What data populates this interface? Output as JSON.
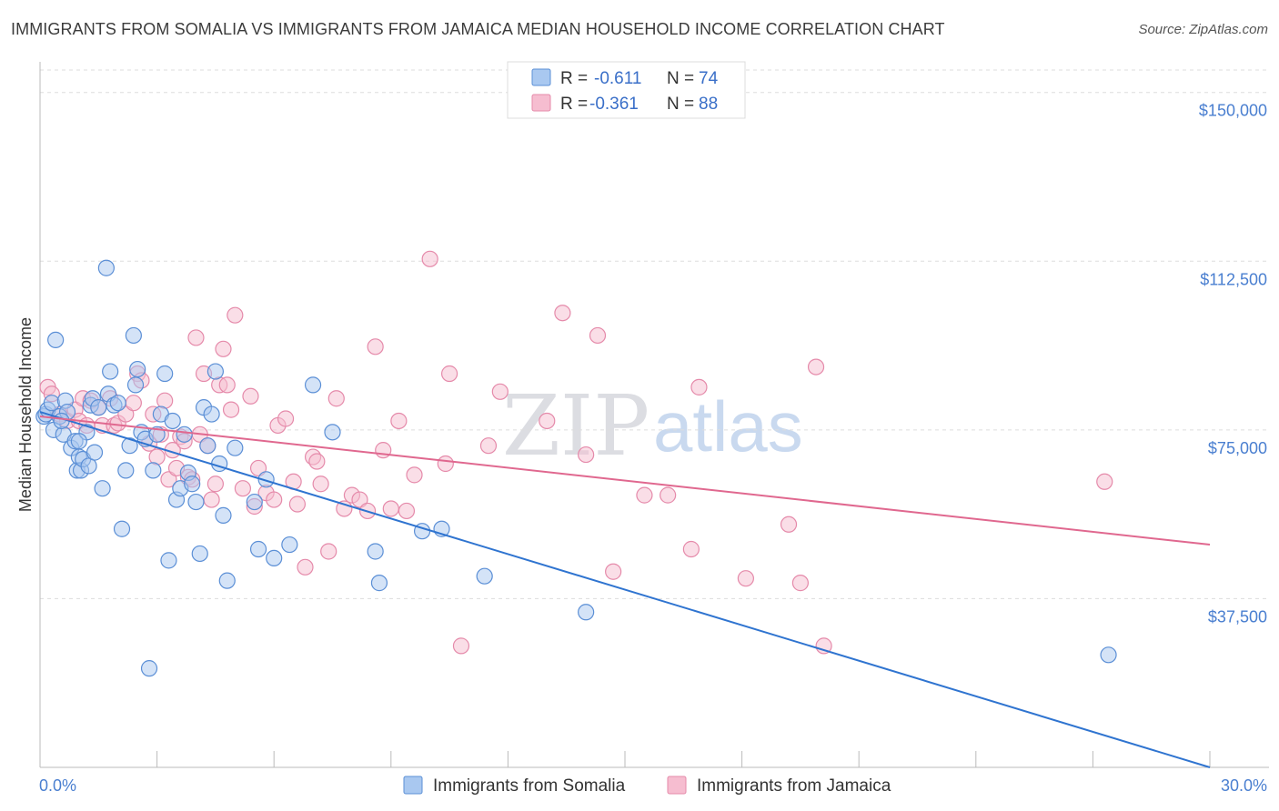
{
  "title": "IMMIGRANTS FROM SOMALIA VS IMMIGRANTS FROM JAMAICA MEDIAN HOUSEHOLD INCOME CORRELATION CHART",
  "source": "Source: ZipAtlas.com",
  "watermark": {
    "zip": "ZIP",
    "atlas": "atlas"
  },
  "colors": {
    "somalia_fill": "#a9c8f0",
    "somalia_stroke": "#5b8fd6",
    "somalia_line": "#2f74d0",
    "jamaica_fill": "#f6bdd0",
    "jamaica_stroke": "#e58aaa",
    "jamaica_line": "#e0688f",
    "tick_text": "#4a7fd0",
    "grid": "#dddddd"
  },
  "legend": {
    "rows": [
      {
        "r_label": "R =",
        "r_value": "-0.611",
        "n_label": "N =",
        "n_value": "74",
        "series": "somalia"
      },
      {
        "r_label": "R =",
        "r_value": "-0.361",
        "n_label": "N =",
        "n_value": "88",
        "series": "jamaica"
      }
    ]
  },
  "chart_data": {
    "type": "scatter",
    "title": "IMMIGRANTS FROM SOMALIA VS IMMIGRANTS FROM JAMAICA MEDIAN HOUSEHOLD INCOME CORRELATION CHART",
    "xlabel": "",
    "ylabel": "Median Household Income",
    "xlim": [
      0,
      30
    ],
    "ylim": [
      0,
      155000
    ],
    "x_tick_labels": {
      "left": "0.0%",
      "right": "30.0%"
    },
    "y_ticks": [
      {
        "value": 37500,
        "label": "$37,500"
      },
      {
        "value": 75000,
        "label": "$75,000"
      },
      {
        "value": 112500,
        "label": "$112,500"
      },
      {
        "value": 150000,
        "label": "$150,000"
      }
    ],
    "grid": true,
    "legend_position": "bottom",
    "series": [
      {
        "name": "Immigrants from Somalia",
        "color": "#5b8fd6",
        "trend": {
          "x": [
            0,
            30
          ],
          "y": [
            79000,
            0
          ]
        },
        "points": [
          [
            0.1,
            78000
          ],
          [
            0.15,
            78500
          ],
          [
            0.2,
            79500
          ],
          [
            0.3,
            81000
          ],
          [
            0.35,
            75000
          ],
          [
            0.4,
            95000
          ],
          [
            0.5,
            78000
          ],
          [
            0.6,
            74000
          ],
          [
            0.65,
            81500
          ],
          [
            0.7,
            79000
          ],
          [
            0.8,
            71000
          ],
          [
            0.9,
            72500
          ],
          [
            0.95,
            66000
          ],
          [
            1.0,
            69000
          ],
          [
            1.05,
            66000
          ],
          [
            1.1,
            68500
          ],
          [
            1.2,
            74500
          ],
          [
            1.25,
            67000
          ],
          [
            1.3,
            80500
          ],
          [
            1.35,
            82000
          ],
          [
            1.5,
            80000
          ],
          [
            1.6,
            62000
          ],
          [
            1.7,
            111000
          ],
          [
            1.75,
            83000
          ],
          [
            1.8,
            88000
          ],
          [
            1.9,
            80500
          ],
          [
            2.0,
            81000
          ],
          [
            2.1,
            53000
          ],
          [
            2.2,
            66000
          ],
          [
            2.3,
            71500
          ],
          [
            2.4,
            96000
          ],
          [
            2.45,
            85000
          ],
          [
            2.5,
            88500
          ],
          [
            2.6,
            74500
          ],
          [
            2.7,
            73000
          ],
          [
            2.8,
            22000
          ],
          [
            2.9,
            66000
          ],
          [
            3.0,
            74000
          ],
          [
            3.1,
            78500
          ],
          [
            3.2,
            87500
          ],
          [
            3.3,
            46000
          ],
          [
            3.4,
            77000
          ],
          [
            3.5,
            59500
          ],
          [
            3.6,
            62000
          ],
          [
            3.7,
            74000
          ],
          [
            3.8,
            65500
          ],
          [
            3.9,
            63000
          ],
          [
            4.0,
            59000
          ],
          [
            4.1,
            47500
          ],
          [
            4.2,
            80000
          ],
          [
            4.3,
            71500
          ],
          [
            4.4,
            78500
          ],
          [
            4.5,
            88000
          ],
          [
            4.6,
            67500
          ],
          [
            4.7,
            56000
          ],
          [
            4.8,
            41500
          ],
          [
            5.0,
            71000
          ],
          [
            5.5,
            59000
          ],
          [
            5.6,
            48500
          ],
          [
            5.8,
            64000
          ],
          [
            6.0,
            46500
          ],
          [
            6.4,
            49500
          ],
          [
            7.0,
            85000
          ],
          [
            7.5,
            74500
          ],
          [
            8.6,
            48000
          ],
          [
            8.7,
            41000
          ],
          [
            9.8,
            52500
          ],
          [
            10.3,
            53000
          ],
          [
            11.4,
            42500
          ],
          [
            14.0,
            34500
          ],
          [
            27.4,
            25000
          ],
          [
            1.0,
            72500
          ],
          [
            0.55,
            77000
          ],
          [
            1.4,
            70000
          ]
        ]
      },
      {
        "name": "Immigrants from Jamaica",
        "color": "#e58aaa",
        "trend": {
          "x": [
            0,
            30
          ],
          "y": [
            78000,
            49500
          ]
        },
        "points": [
          [
            0.2,
            84500
          ],
          [
            0.3,
            83000
          ],
          [
            0.5,
            78500
          ],
          [
            0.7,
            77000
          ],
          [
            0.9,
            79500
          ],
          [
            1.0,
            77000
          ],
          [
            1.1,
            82000
          ],
          [
            1.3,
            81500
          ],
          [
            1.5,
            80000
          ],
          [
            1.6,
            76000
          ],
          [
            1.8,
            82000
          ],
          [
            1.9,
            76000
          ],
          [
            2.0,
            76500
          ],
          [
            2.2,
            78500
          ],
          [
            2.4,
            81000
          ],
          [
            2.5,
            87500
          ],
          [
            2.6,
            86000
          ],
          [
            2.8,
            72000
          ],
          [
            2.9,
            78500
          ],
          [
            3.0,
            69000
          ],
          [
            3.1,
            74000
          ],
          [
            3.2,
            81500
          ],
          [
            3.3,
            64000
          ],
          [
            3.4,
            70500
          ],
          [
            3.5,
            66500
          ],
          [
            3.6,
            73500
          ],
          [
            3.7,
            72500
          ],
          [
            3.8,
            64500
          ],
          [
            3.9,
            64000
          ],
          [
            4.0,
            95500
          ],
          [
            4.1,
            74000
          ],
          [
            4.2,
            87500
          ],
          [
            4.3,
            71500
          ],
          [
            4.4,
            59500
          ],
          [
            4.5,
            63000
          ],
          [
            4.6,
            85000
          ],
          [
            4.7,
            93000
          ],
          [
            4.8,
            85000
          ],
          [
            4.9,
            79500
          ],
          [
            5.0,
            100500
          ],
          [
            5.2,
            62000
          ],
          [
            5.4,
            82500
          ],
          [
            5.5,
            58000
          ],
          [
            5.6,
            66500
          ],
          [
            5.8,
            61000
          ],
          [
            6.0,
            59500
          ],
          [
            6.1,
            76000
          ],
          [
            6.3,
            77500
          ],
          [
            6.5,
            63500
          ],
          [
            6.6,
            58500
          ],
          [
            6.8,
            44500
          ],
          [
            7.0,
            69000
          ],
          [
            7.1,
            68000
          ],
          [
            7.2,
            63000
          ],
          [
            7.4,
            48000
          ],
          [
            7.6,
            82000
          ],
          [
            7.8,
            57500
          ],
          [
            8.0,
            60500
          ],
          [
            8.2,
            59500
          ],
          [
            8.4,
            57000
          ],
          [
            8.6,
            93500
          ],
          [
            8.8,
            70500
          ],
          [
            9.0,
            57500
          ],
          [
            9.2,
            77000
          ],
          [
            9.4,
            57000
          ],
          [
            9.6,
            65000
          ],
          [
            10.0,
            113000
          ],
          [
            10.4,
            67500
          ],
          [
            10.5,
            87500
          ],
          [
            10.8,
            27000
          ],
          [
            11.5,
            71500
          ],
          [
            11.8,
            83500
          ],
          [
            13.0,
            77000
          ],
          [
            13.4,
            101000
          ],
          [
            14.0,
            69500
          ],
          [
            14.3,
            96000
          ],
          [
            14.7,
            43500
          ],
          [
            15.5,
            60500
          ],
          [
            16.1,
            60500
          ],
          [
            16.7,
            48500
          ],
          [
            16.9,
            84500
          ],
          [
            18.1,
            42000
          ],
          [
            19.2,
            54000
          ],
          [
            19.5,
            41000
          ],
          [
            19.9,
            89000
          ],
          [
            20.1,
            27000
          ],
          [
            27.3,
            63500
          ],
          [
            1.2,
            76000
          ]
        ]
      }
    ]
  },
  "bottom_legend": [
    {
      "label": "Immigrants from Somalia",
      "series": "somalia"
    },
    {
      "label": "Immigrants from Jamaica",
      "series": "jamaica"
    }
  ]
}
